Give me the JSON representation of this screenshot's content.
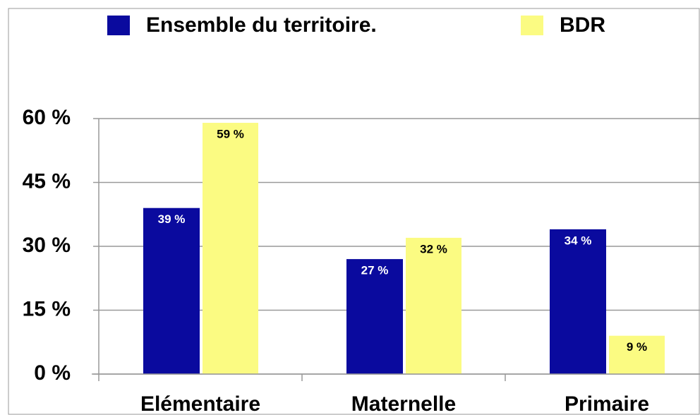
{
  "chart_data": {
    "type": "bar",
    "categories": [
      "Elémentaire",
      "Maternelle",
      "Primaire"
    ],
    "series": [
      {
        "name": "Ensemble du territoire.",
        "color": "#0a0a9e",
        "values": [
          39,
          27,
          34
        ],
        "value_labels": [
          "39 %",
          "27 %",
          "34 %"
        ]
      },
      {
        "name": "BDR",
        "color": "#fbfb82",
        "values": [
          59,
          32,
          9
        ],
        "value_labels": [
          "59 %",
          "32 %",
          "9 %"
        ]
      }
    ],
    "ylim": [
      0,
      60
    ],
    "yticks": [
      {
        "value": 0,
        "label": "0 %"
      },
      {
        "value": 15,
        "label": "15 %"
      },
      {
        "value": 30,
        "label": "30 %"
      },
      {
        "value": 45,
        "label": "45 %"
      },
      {
        "value": 60,
        "label": "60 %"
      }
    ],
    "grid": true,
    "legend": "top"
  }
}
